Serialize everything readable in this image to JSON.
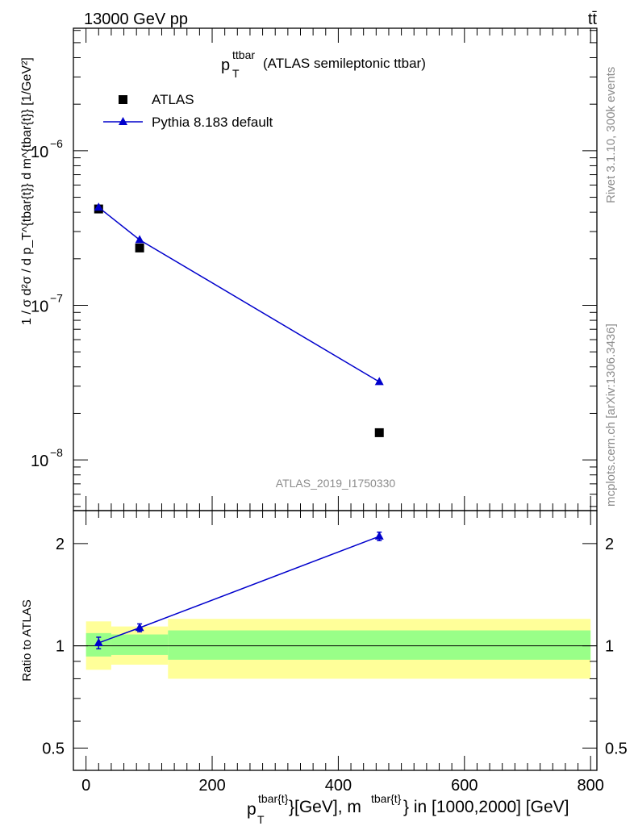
{
  "header": {
    "left_label": "13000 GeV pp",
    "right_label": "tt̄"
  },
  "side_labels": {
    "rivet": "Rivet 3.1.10,  300k events",
    "mcplots": "mcplots.cern.ch [arXiv:1306.3436]"
  },
  "watermark": "ATLAS_2019_I1750330",
  "title": {
    "var": "p",
    "sup": "ttbar",
    "sub": "T",
    "rest": "(ATLAS semileptonic ttbar)"
  },
  "legend": {
    "data_label": "ATLAS",
    "mc_label": "Pythia 8.183 default"
  },
  "colors": {
    "mc": "#0000cc",
    "band_inner": "#99ff88",
    "band_outer": "#ffff99",
    "data": "#000000"
  },
  "chart_data": {
    "type": "scatter",
    "x_range": [
      -20,
      810
    ],
    "main": {
      "ylabel": "1 / σ d²σ / d p_T^{tbar{t}} d m^{tbar{t}} [1/GeV²]",
      "yscale": "log",
      "ylim": [
        4.7e-09,
        6.2e-06
      ],
      "y_ticks": [
        {
          "value": 1e-08,
          "base": "10",
          "exp": "−8"
        },
        {
          "value": 1e-07,
          "base": "10",
          "exp": "−7"
        },
        {
          "value": 1e-06,
          "base": "10",
          "exp": "−6"
        }
      ]
    },
    "ratio": {
      "ylabel": "Ratio to ATLAS",
      "yscale": "log",
      "ylim": [
        0.43,
        2.5
      ],
      "y_ticks": [
        {
          "value": 0.5,
          "label": "0.5"
        },
        {
          "value": 1,
          "label": "1"
        },
        {
          "value": 2,
          "label": "2"
        }
      ]
    },
    "x_ticks": [
      0,
      200,
      400,
      600,
      800
    ],
    "x_tick_labels": [
      "0",
      "200",
      "400",
      "600",
      "800"
    ],
    "xlabel": {
      "p": "p",
      "p_sup": "tbar{t}",
      "p_sub": "T",
      "mid": "}[GeV], m",
      "m_sup": "tbar{t}",
      "tail": "} in [1000,2000] [GeV]"
    },
    "bins": [
      {
        "lo": 0,
        "hi": 40,
        "x": 20
      },
      {
        "lo": 40,
        "hi": 130,
        "x": 85
      },
      {
        "lo": 130,
        "hi": 800,
        "x": 465
      }
    ],
    "series": [
      {
        "name": "ATLAS",
        "marker": "square",
        "values": [
          4.2e-07,
          2.35e-07,
          1.5e-08
        ]
      },
      {
        "name": "Pythia 8.183 default",
        "marker": "triangle",
        "values": [
          4.3e-07,
          2.65e-07,
          3.2e-08
        ]
      }
    ],
    "ratio_series": {
      "name": "Pythia 8.183 default / ATLAS",
      "values": [
        1.02,
        1.13,
        2.1
      ],
      "errors": [
        0.04,
        0.03,
        0.06
      ]
    },
    "bands": {
      "inner": [
        [
          0.93,
          1.09
        ],
        [
          0.94,
          1.08
        ],
        [
          0.91,
          1.11
        ]
      ],
      "outer": [
        [
          0.85,
          1.18
        ],
        [
          0.88,
          1.14
        ],
        [
          0.8,
          1.2
        ]
      ]
    }
  }
}
